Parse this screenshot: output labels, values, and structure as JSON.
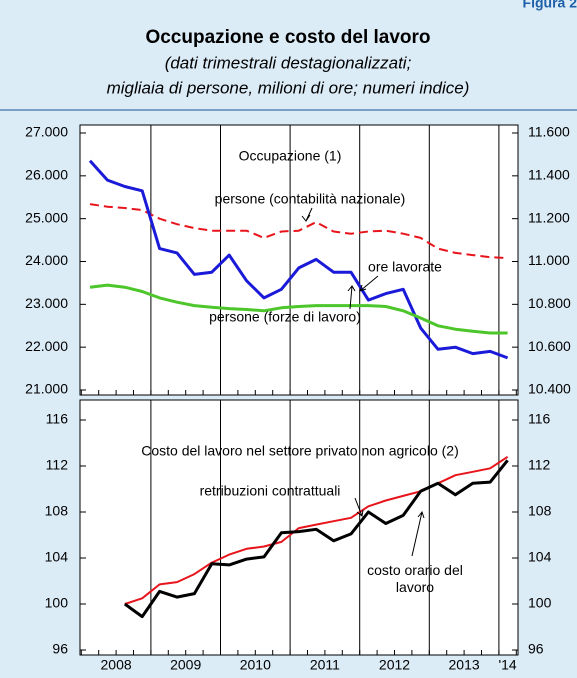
{
  "header": {
    "figure_label": "Figura 2",
    "title": "Occupazione e costo del lavoro",
    "subtitle_lines": [
      "(dati trimestrali destagionalizzati;",
      "migliaia di persone, milioni di ore; numeri indice)"
    ]
  },
  "chart_data": [
    {
      "type": "line",
      "title": "Occupazione (1)",
      "xlabels": [
        "2008",
        "2009",
        "2010",
        "2011",
        "2012",
        "2013",
        "'14"
      ],
      "ylim": [
        21000,
        27000
      ],
      "yticks": [
        {
          "value": 21000,
          "label": "21.000"
        },
        {
          "value": 22000,
          "label": "22.000"
        },
        {
          "value": 23000,
          "label": "23.000"
        },
        {
          "value": 24000,
          "label": "24.000"
        },
        {
          "value": 25000,
          "label": "25.000"
        },
        {
          "value": 26000,
          "label": "26.000"
        },
        {
          "value": 27000,
          "label": "27.000"
        }
      ],
      "y2lim": [
        10400,
        11600
      ],
      "y2ticks": [
        {
          "value": 10400,
          "label": "10.400"
        },
        {
          "value": 10600,
          "label": "10.600"
        },
        {
          "value": 10800,
          "label": "10.800"
        },
        {
          "value": 11000,
          "label": "11.000"
        },
        {
          "value": 11200,
          "label": "11.200"
        },
        {
          "value": 11400,
          "label": "11.400"
        },
        {
          "value": 11600,
          "label": "11.600"
        }
      ],
      "series": [
        {
          "name": "persone (contabilità nazionale)",
          "color": "#e8141b",
          "dash": true,
          "values": [
            25340,
            25280,
            25250,
            25200,
            25000,
            24870,
            24780,
            24720,
            24720,
            24720,
            24550,
            24700,
            24720,
            24920,
            24700,
            24650,
            24700,
            24720,
            24650,
            24550,
            24300,
            24200,
            24150,
            24100,
            24080
          ]
        },
        {
          "name": "ore lavorate",
          "color": "#1a1ad8",
          "axis": "y2",
          "values": [
            11470,
            11380,
            11350,
            11330,
            11060,
            11040,
            10940,
            10950,
            11030,
            10910,
            10830,
            10870,
            10970,
            11010,
            10950,
            10950,
            10820,
            10850,
            10870,
            10690,
            10590,
            10600,
            10570,
            10580,
            10550
          ]
        },
        {
          "name": "persone (forze di lavoro)",
          "color": "#4cc62a",
          "values": [
            23400,
            23450,
            23400,
            23300,
            23150,
            23050,
            22970,
            22930,
            22900,
            22880,
            22850,
            22920,
            22950,
            22970,
            22970,
            22970,
            22970,
            22950,
            22850,
            22680,
            22500,
            22420,
            22370,
            22330,
            22330
          ]
        }
      ]
    },
    {
      "type": "line",
      "title": "Costo del lavoro nel settore privato non agricolo (2)",
      "xlabels": [
        "2008",
        "2009",
        "2010",
        "2011",
        "2012",
        "2013",
        "'14"
      ],
      "ylim": [
        96,
        116
      ],
      "yticks": [
        96,
        100,
        104,
        108,
        112,
        116
      ],
      "y2lim": [
        96,
        116
      ],
      "y2ticks": [
        96,
        100,
        104,
        108,
        112,
        116
      ],
      "series": [
        {
          "name": "retribuzioni contrattuali",
          "color": "#e8141b",
          "values": [
            null,
            null,
            100,
            100.5,
            101.7,
            101.9,
            102.6,
            103.6,
            104.3,
            104.8,
            105.0,
            105.4,
            106.6,
            106.9,
            107.2,
            107.5,
            108.5,
            109.0,
            109.4,
            109.8,
            110.5,
            111.2,
            111.5,
            111.8,
            112.8
          ]
        },
        {
          "name": "costo orario del lavoro",
          "color": "#000000",
          "values": [
            null,
            null,
            100,
            98.9,
            101.1,
            100.6,
            100.9,
            103.5,
            103.4,
            103.9,
            104.1,
            106.2,
            106.3,
            106.5,
            105.5,
            106.1,
            108.0,
            107.0,
            107.7,
            109.8,
            110.5,
            109.5,
            110.5,
            110.6,
            112.5
          ]
        }
      ]
    }
  ]
}
